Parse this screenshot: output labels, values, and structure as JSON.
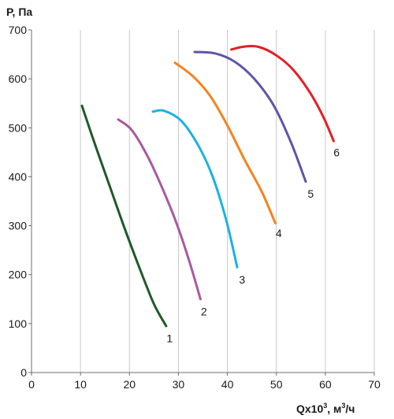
{
  "chart_data": {
    "type": "line",
    "ylabel": "P, Па",
    "xlabel": {
      "base": "Qx10",
      "sup": "3",
      "unit": ", м",
      "unit_sup": "3",
      "tail": "/ч"
    },
    "xlim": [
      0,
      70
    ],
    "ylim": [
      0,
      700
    ],
    "xticks": [
      0,
      10,
      20,
      30,
      40,
      50,
      60,
      70
    ],
    "yticks": [
      0,
      100,
      200,
      300,
      400,
      500,
      600,
      700
    ],
    "grid": "vertical",
    "series": [
      {
        "name": "1",
        "color": "#1f5a2a",
        "x": [
          10.3,
          13,
          16,
          19,
          22,
          25,
          27.5
        ],
        "y": [
          545,
          465,
          380,
          295,
          215,
          140,
          95
        ]
      },
      {
        "name": "2",
        "color": "#a85aa0",
        "x": [
          17.7,
          20.5,
          23.8,
          27,
          29.8,
          32.3,
          34.5
        ],
        "y": [
          517,
          495,
          440,
          370,
          300,
          225,
          150
        ]
      },
      {
        "name": "3",
        "color": "#1ab2e0",
        "x": [
          24.8,
          27,
          30.5,
          34,
          37,
          39.8,
          42
        ],
        "y": [
          533,
          535,
          515,
          465,
          400,
          310,
          215
        ]
      },
      {
        "name": "4",
        "color": "#f5821f",
        "x": [
          29.3,
          33,
          36.5,
          40,
          43.5,
          47,
          49.8
        ],
        "y": [
          633,
          605,
          565,
          505,
          435,
          370,
          305
        ]
      },
      {
        "name": "5",
        "color": "#5c56a8",
        "x": [
          33.3,
          37.5,
          41.5,
          45.5,
          49.5,
          53,
          56
        ],
        "y": [
          655,
          652,
          635,
          600,
          545,
          470,
          390
        ]
      },
      {
        "name": "6",
        "color": "#e41e25",
        "x": [
          40.8,
          43.5,
          46.5,
          50,
          53.5,
          57,
          59.7,
          61.7
        ],
        "y": [
          660,
          666,
          665,
          648,
          618,
          570,
          520,
          473
        ]
      }
    ],
    "annotations": [
      {
        "text": "1",
        "x": 28.2,
        "y": 70
      },
      {
        "text": "2",
        "x": 35.2,
        "y": 125
      },
      {
        "text": "3",
        "x": 43.0,
        "y": 190
      },
      {
        "text": "4",
        "x": 50.5,
        "y": 285
      },
      {
        "text": "5",
        "x": 57.0,
        "y": 365
      },
      {
        "text": "6",
        "x": 62.3,
        "y": 450
      }
    ]
  }
}
